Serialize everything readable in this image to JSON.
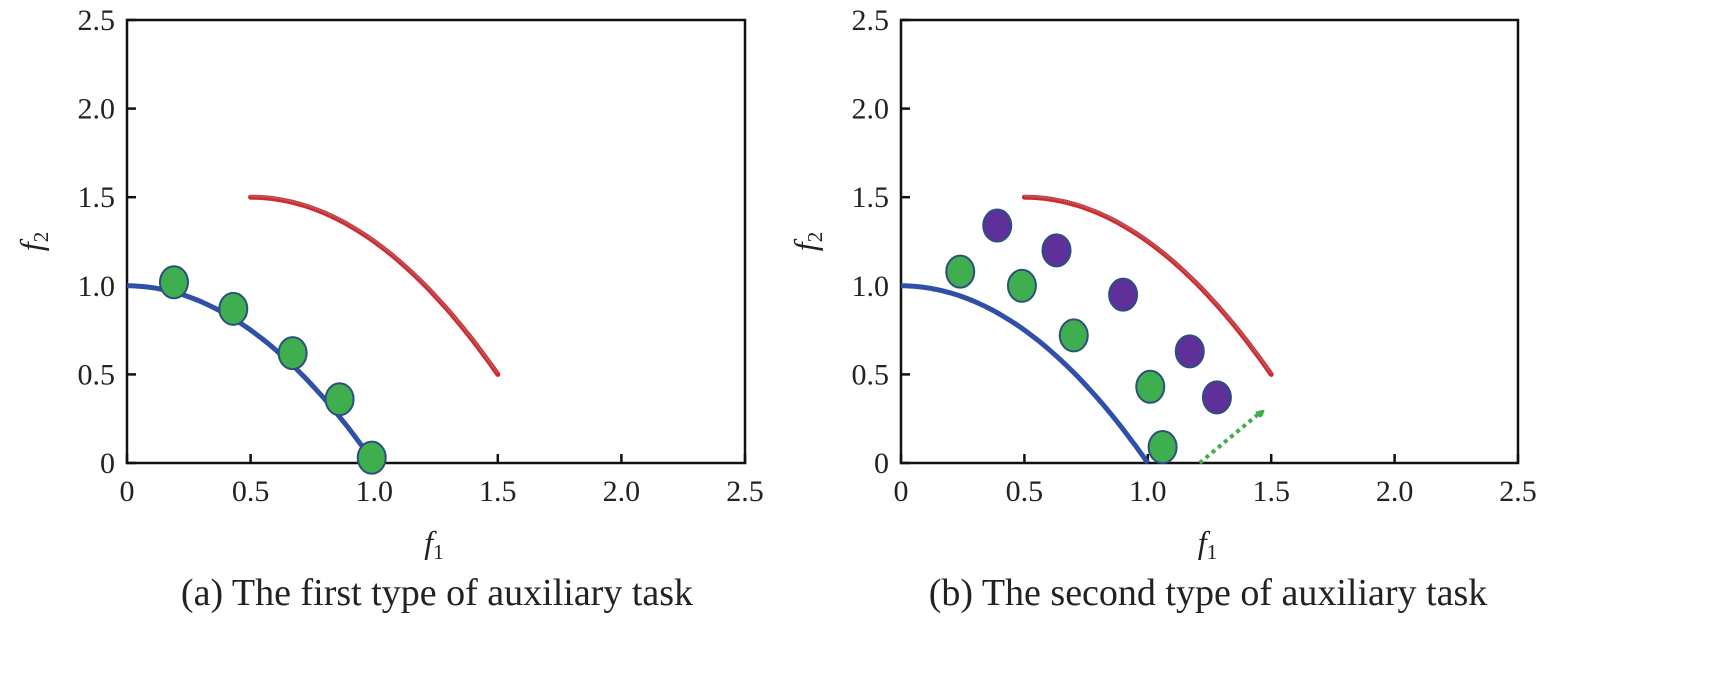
{
  "chart_data": [
    {
      "type": "scatter",
      "caption": "(a) The first type of auxiliary task",
      "xlabel": "f",
      "xlabel_sub": "1",
      "ylabel": "f",
      "ylabel_sub": "2",
      "xlim": [
        0,
        2.5
      ],
      "ylim": [
        0,
        2.5
      ],
      "xticks": [
        "0",
        "0.5",
        "1.0",
        "1.5",
        "2.0",
        "2.5"
      ],
      "yticks": [
        "0",
        "0.5",
        "1.0",
        "1.5",
        "2.0",
        "2.5"
      ],
      "grid": false,
      "curves": [
        {
          "color": "#2f4fa8",
          "f1_range": [
            0,
            1.0
          ],
          "shape": "f2 = 1 - f1^2"
        },
        {
          "color": "#d9262c",
          "f1_range": [
            0.5,
            1.5
          ],
          "shape": "f2 = 1.5 - (f1 - 0.5)^2"
        }
      ],
      "points": [
        {
          "color": "#3fae4f",
          "values": [
            [
              0.19,
              1.02
            ],
            [
              0.43,
              0.87
            ],
            [
              0.67,
              0.62
            ],
            [
              0.86,
              0.36
            ],
            [
              0.99,
              0.03
            ]
          ]
        }
      ]
    },
    {
      "type": "scatter",
      "caption": "(b) The second type of auxiliary task",
      "xlabel": "f",
      "xlabel_sub": "1",
      "ylabel": "f",
      "ylabel_sub": "2",
      "xlim": [
        0,
        2.5
      ],
      "ylim": [
        0,
        2.5
      ],
      "xticks": [
        "0",
        "0.5",
        "1.0",
        "1.5",
        "2.0",
        "2.5"
      ],
      "yticks": [
        "0",
        "0.5",
        "1.0",
        "1.5",
        "2.0",
        "2.5"
      ],
      "grid": false,
      "curves": [
        {
          "color": "#2f4fa8",
          "f1_range": [
            0,
            1.0
          ],
          "shape": "f2 = 1 - f1^2"
        },
        {
          "color": "#d9262c",
          "f1_range": [
            0.5,
            1.5
          ],
          "shape": "f2 = 1.5 - (f1 - 0.5)^2"
        }
      ],
      "points": [
        {
          "color": "#3fae4f",
          "values": [
            [
              0.24,
              1.08
            ],
            [
              0.49,
              1.0
            ],
            [
              0.7,
              0.72
            ],
            [
              1.01,
              0.43
            ],
            [
              1.06,
              0.09
            ]
          ]
        },
        {
          "color": "#5f2f9a",
          "values": [
            [
              0.39,
              1.34
            ],
            [
              0.63,
              1.2
            ],
            [
              0.9,
              0.95
            ],
            [
              1.17,
              0.63
            ],
            [
              1.28,
              0.37
            ]
          ]
        }
      ],
      "arrow": {
        "color": "#3fae4f",
        "from": [
          1.21,
          0
        ],
        "to": [
          1.46,
          0.29
        ],
        "style": "dotted"
      }
    }
  ]
}
